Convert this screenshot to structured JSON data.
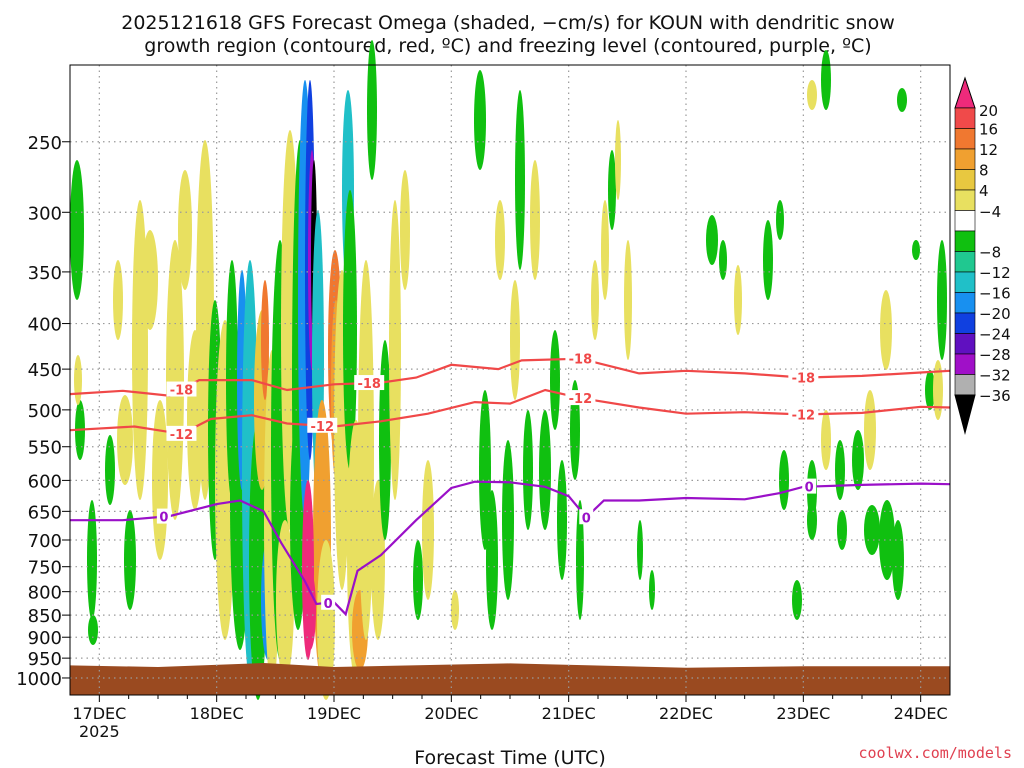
{
  "title_line1": "2025121618 GFS Forecast Omega (shaded, −cm/s) for KOUN with dendritic snow",
  "title_line2": "growth region (contoured, red, ºC) and freezing level (contoured, purple, ºC)",
  "xlabel": "Forecast Time (UTC)",
  "credit": "coolwx.com/models",
  "colors": {
    "ground": "#9a4a20",
    "dgz": "#f04848",
    "freezing": "#9a10c8",
    "grid": "#9a9a9a",
    "credit": "#e04050"
  },
  "chart_data": {
    "type": "heatmap",
    "title": "2025121618 GFS Forecast Omega (shaded, −cm/s) for KOUN with dendritic snow growth region (contoured, red, ºC) and freezing level (contoured, purple, ºC)",
    "xlabel": "Forecast Time (UTC)",
    "ylabel": "",
    "y_scale": "log-pressure",
    "y_range_hPa": [
      1045,
      205
    ],
    "x_range_days": [
      16.75,
      24.25
    ],
    "x_tick_values": [
      17,
      18,
      19,
      20,
      21,
      22,
      23,
      24
    ],
    "x_ticks": [
      "17DEC",
      "18DEC",
      "19DEC",
      "20DEC",
      "21DEC",
      "22DEC",
      "23DEC",
      "24DEC"
    ],
    "x_year_label": "2025",
    "y_ticks": [
      250,
      300,
      350,
      400,
      450,
      500,
      550,
      600,
      650,
      700,
      750,
      800,
      850,
      900,
      950,
      1000
    ],
    "grid": true,
    "colorbar": {
      "labels": [
        "20",
        "16",
        "12",
        "8",
        "4",
        "−4",
        "−8",
        "−12",
        "−16",
        "−20",
        "−24",
        "−28",
        "−32",
        "−36"
      ],
      "colors": [
        "#ee2a7b",
        "#f04a4a",
        "#f07830",
        "#f0a030",
        "#e8c840",
        "#e8e060",
        "#ffffff",
        "#10c010",
        "#20c890",
        "#20c0c8",
        "#1890f0",
        "#1040e0",
        "#6010c0",
        "#a010c8",
        "#b0b0b0",
        "#000000"
      ]
    },
    "ground_surface_hPa": [
      [
        16.75,
        968
      ],
      [
        17.5,
        972
      ],
      [
        18.4,
        962
      ],
      [
        19.0,
        972
      ],
      [
        20.5,
        963
      ],
      [
        21.2,
        968
      ],
      [
        22.0,
        974
      ],
      [
        23.0,
        970
      ],
      [
        24.25,
        970
      ]
    ],
    "contours": [
      {
        "name": "-18",
        "color": "#f04848",
        "labels_at_days": [
          17.7,
          19.3,
          21.1,
          23.0
        ],
        "points": [
          [
            16.75,
            480
          ],
          [
            17.2,
            476
          ],
          [
            17.6,
            482
          ],
          [
            17.85,
            463
          ],
          [
            18.3,
            463
          ],
          [
            18.6,
            475
          ],
          [
            19.0,
            468
          ],
          [
            19.4,
            466
          ],
          [
            19.7,
            460
          ],
          [
            20.0,
            445
          ],
          [
            20.4,
            450
          ],
          [
            20.6,
            440
          ],
          [
            21.1,
            438
          ],
          [
            21.6,
            455
          ],
          [
            22.0,
            452
          ],
          [
            22.5,
            455
          ],
          [
            23.0,
            460
          ],
          [
            23.5,
            458
          ],
          [
            24.0,
            454
          ],
          [
            24.25,
            452
          ]
        ]
      },
      {
        "name": "-12",
        "color": "#f04848",
        "labels_at_days": [
          17.7,
          18.9,
          21.1,
          23.0
        ],
        "points": [
          [
            16.75,
            527
          ],
          [
            17.3,
            522
          ],
          [
            17.7,
            532
          ],
          [
            17.95,
            512
          ],
          [
            18.3,
            507
          ],
          [
            18.6,
            518
          ],
          [
            19.0,
            522
          ],
          [
            19.4,
            515
          ],
          [
            19.8,
            505
          ],
          [
            20.2,
            490
          ],
          [
            20.5,
            492
          ],
          [
            20.8,
            475
          ],
          [
            21.1,
            485
          ],
          [
            21.6,
            497
          ],
          [
            22.0,
            505
          ],
          [
            22.5,
            503
          ],
          [
            23.0,
            506
          ],
          [
            23.5,
            504
          ],
          [
            24.0,
            496
          ],
          [
            24.25,
            497
          ]
        ]
      },
      {
        "name": "0",
        "color": "#9a10c8",
        "labels_at_days": [
          17.55,
          18.95,
          21.15,
          23.05
        ],
        "points": [
          [
            16.75,
            665
          ],
          [
            17.2,
            665
          ],
          [
            17.6,
            658
          ],
          [
            18.0,
            638
          ],
          [
            18.2,
            632
          ],
          [
            18.4,
            650
          ],
          [
            18.55,
            705
          ],
          [
            18.75,
            778
          ],
          [
            18.85,
            826
          ],
          [
            19.0,
            822
          ],
          [
            19.1,
            848
          ],
          [
            19.2,
            758
          ],
          [
            19.4,
            728
          ],
          [
            19.7,
            665
          ],
          [
            20.0,
            612
          ],
          [
            20.2,
            602
          ],
          [
            20.5,
            603
          ],
          [
            20.8,
            610
          ],
          [
            21.0,
            625
          ],
          [
            21.15,
            660
          ],
          [
            21.3,
            632
          ],
          [
            21.6,
            632
          ],
          [
            22.0,
            628
          ],
          [
            22.5,
            630
          ],
          [
            22.8,
            620
          ],
          [
            23.0,
            610
          ],
          [
            23.5,
            607
          ],
          [
            24.0,
            605
          ],
          [
            24.25,
            606
          ]
        ]
      }
    ]
  }
}
